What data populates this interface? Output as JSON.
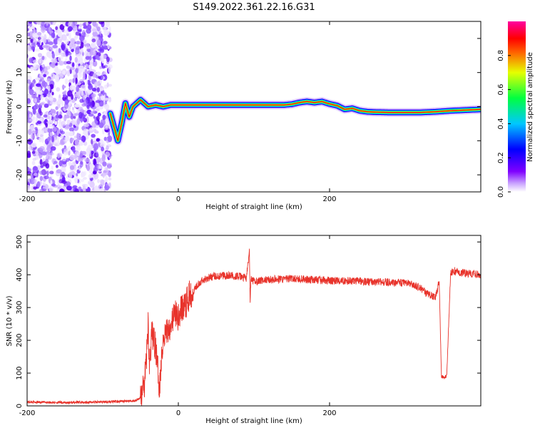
{
  "title": "S149.2022.361.22.16.G31",
  "chart_data": [
    {
      "type": "heatmap",
      "xlabel": "Height of straight line (km)",
      "ylabel": "Frequency (Hz)",
      "xlim": [
        -200,
        400
      ],
      "ylim": [
        -25,
        25
      ],
      "x_ticks": [
        "-200",
        "0",
        "200"
      ],
      "y_ticks": [
        "-20",
        "-10",
        "0",
        "10",
        "20"
      ],
      "grid": false,
      "noise_region_x": [
        -200,
        -90
      ],
      "ridge": {
        "x": [
          -90,
          -85,
          -80,
          -75,
          -70,
          -65,
          -60,
          -55,
          -50,
          -45,
          -40,
          -30,
          -20,
          -10,
          0,
          50,
          100,
          140,
          150,
          160,
          170,
          180,
          190,
          200,
          210,
          220,
          230,
          240,
          250,
          260,
          280,
          300,
          320,
          340,
          360,
          380,
          400
        ],
        "y": [
          -2,
          -6,
          -10,
          -5,
          1,
          -3,
          0,
          1,
          2,
          1,
          0,
          0.5,
          0,
          0.5,
          0.5,
          0.5,
          0.5,
          0.5,
          0.7,
          1.2,
          1.5,
          1.2,
          1.5,
          0.8,
          0.3,
          -0.8,
          -0.5,
          -1.2,
          -1.5,
          -1.6,
          -1.7,
          -1.7,
          -1.7,
          -1.5,
          -1.2,
          -1.0,
          -0.8
        ]
      },
      "colorbar": {
        "label": "Normalized spectral amplitude",
        "range": [
          0,
          1
        ],
        "ticks": [
          "0.0",
          "0.2",
          "0.4",
          "0.6",
          "0.8"
        ],
        "colors": [
          "#ffffff",
          "#7f00ff",
          "#0000ff",
          "#00ffff",
          "#00ff00",
          "#ffff00",
          "#ff0000",
          "#ff00c0"
        ]
      }
    },
    {
      "type": "line",
      "xlabel": "Height of straight line (km)",
      "ylabel": "SNR (10 * v/v)",
      "xlim": [
        -200,
        400
      ],
      "ylim": [
        0,
        520
      ],
      "x_ticks": [
        "-200",
        "0",
        "200"
      ],
      "y_ticks": [
        "0",
        "100",
        "200",
        "300",
        "400",
        "500"
      ],
      "grid": false,
      "color": "#e8332b",
      "x": [
        -200,
        -150,
        -100,
        -60,
        -55,
        -50,
        -45,
        -42,
        -40,
        -38,
        -35,
        -30,
        -25,
        -20,
        -15,
        -10,
        -5,
        0,
        5,
        10,
        15,
        20,
        25,
        30,
        40,
        50,
        60,
        70,
        80,
        90,
        94,
        95,
        96,
        100,
        120,
        150,
        200,
        250,
        300,
        310,
        320,
        330,
        340,
        345,
        348,
        352,
        355,
        360,
        363,
        365,
        370,
        380,
        400
      ],
      "y": [
        12,
        10,
        12,
        15,
        18,
        25,
        60,
        150,
        250,
        120,
        220,
        180,
        60,
        210,
        230,
        250,
        280,
        270,
        300,
        310,
        340,
        350,
        370,
        380,
        392,
        396,
        398,
        397,
        395,
        390,
        470,
        310,
        385,
        380,
        385,
        388,
        382,
        380,
        375,
        370,
        360,
        340,
        330,
        380,
        90,
        88,
        92,
        400,
        410,
        412,
        408,
        405,
        400
      ]
    }
  ]
}
